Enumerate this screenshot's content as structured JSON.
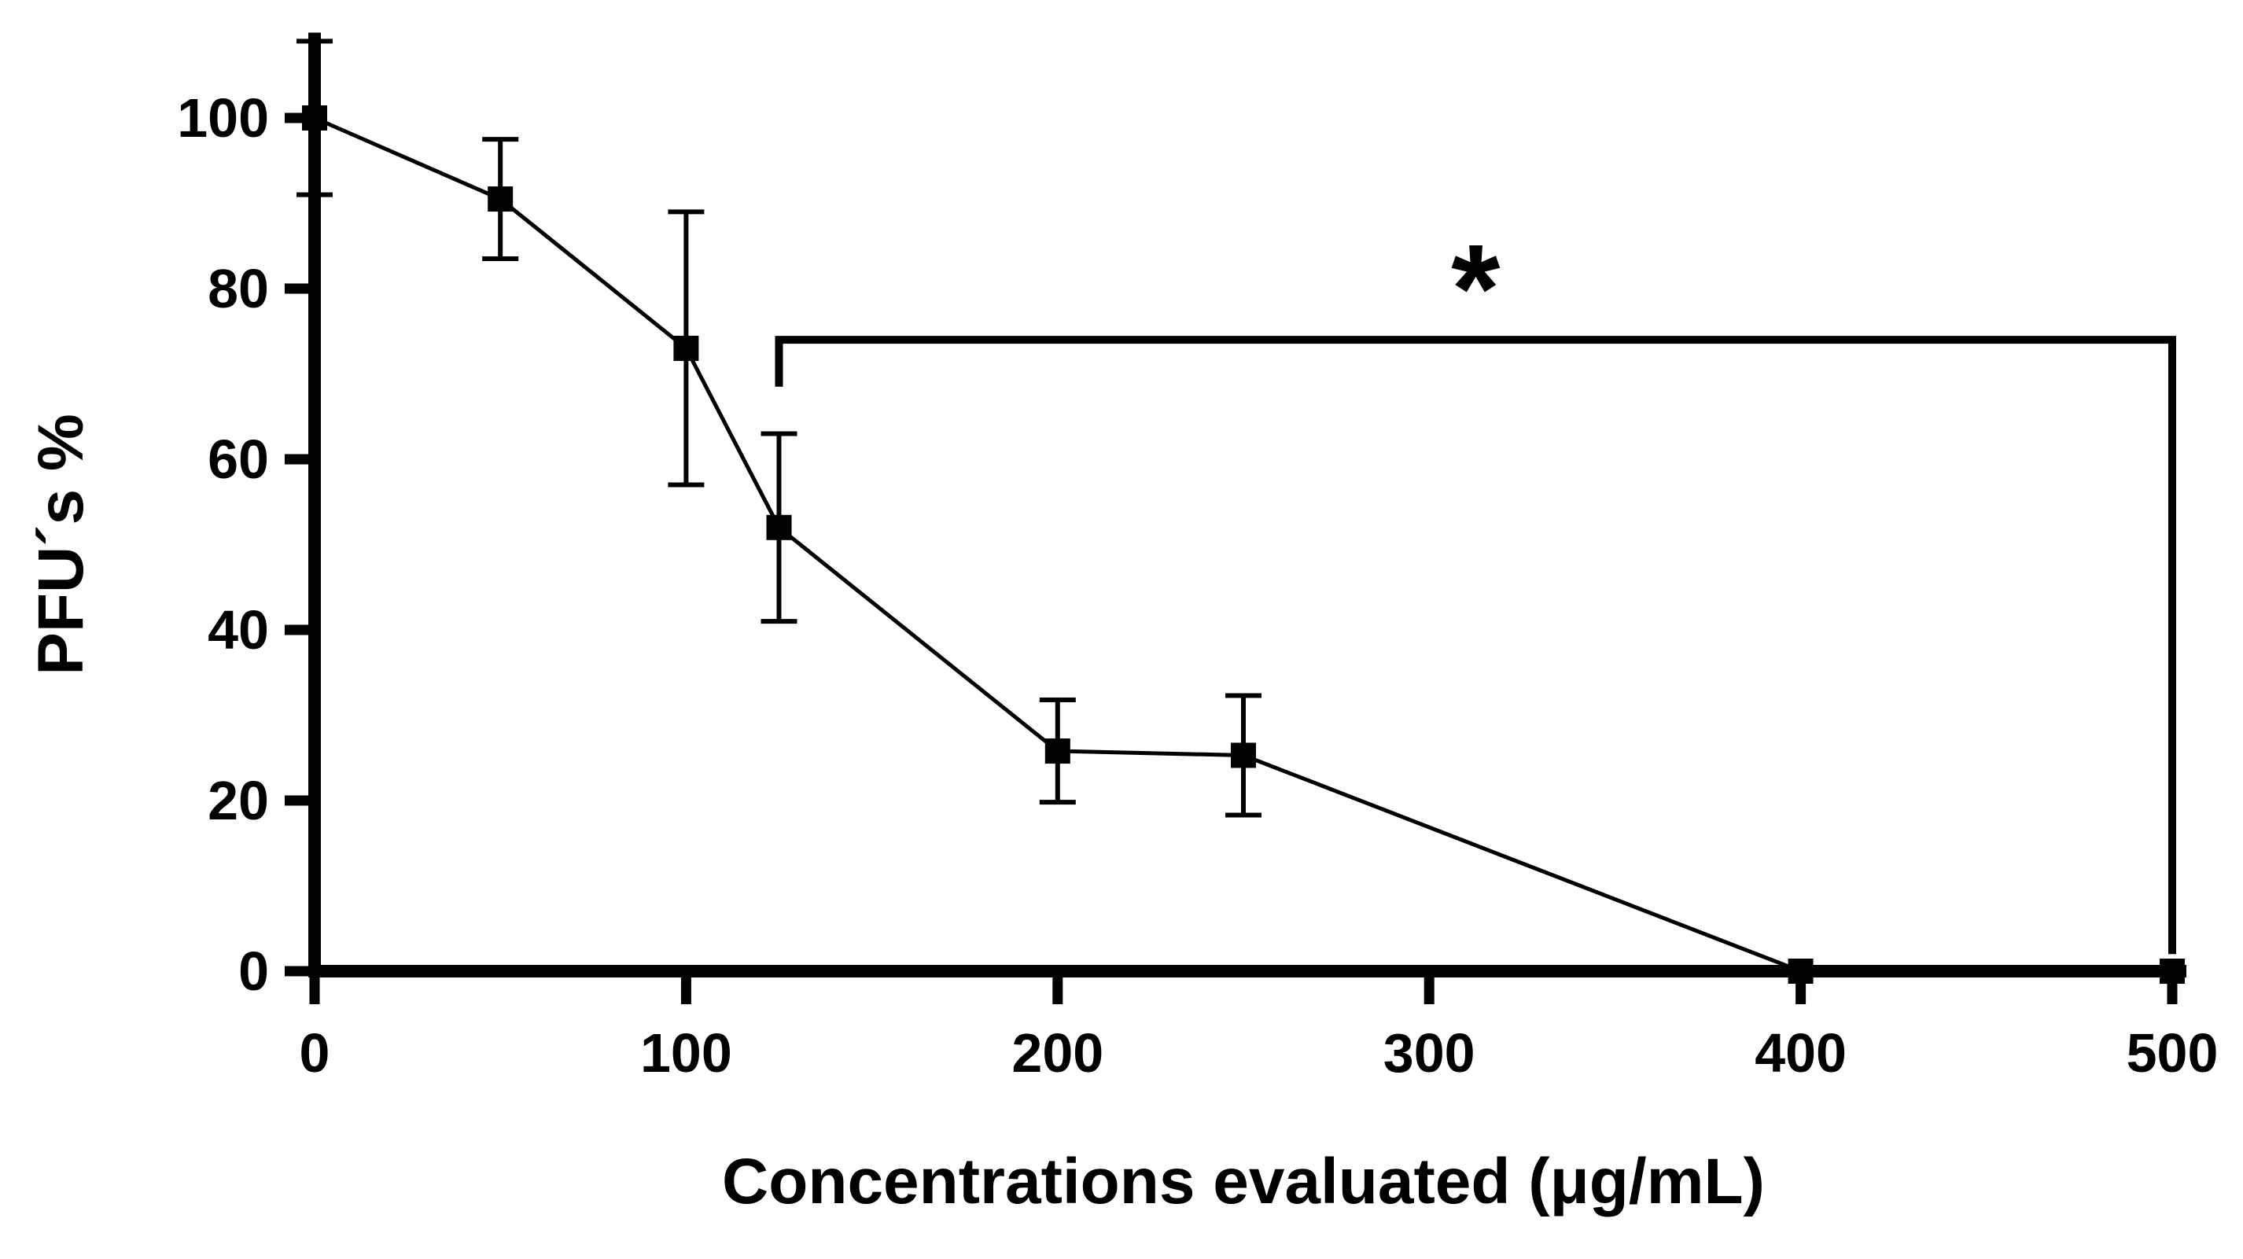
{
  "figure": {
    "background": "#ffffff",
    "foreground": "#000000"
  },
  "chart_data": {
    "type": "line",
    "title": "",
    "xlabel": "Concentrations evaluated (μg/mL)",
    "ylabel": "PFU´s %",
    "x": [
      0,
      50,
      100,
      125,
      200,
      250,
      400,
      500
    ],
    "y": [
      100,
      90.5,
      73,
      52,
      25.8,
      25.3,
      0,
      0
    ],
    "yerr": [
      9,
      7,
      16,
      11,
      6,
      7,
      0,
      0
    ],
    "xticks": [
      0,
      100,
      200,
      300,
      400,
      500
    ],
    "yticks": [
      0,
      20,
      40,
      60,
      80,
      100
    ],
    "xlim": [
      0,
      500
    ],
    "ylim": [
      0,
      110
    ],
    "grid": false,
    "legend": null,
    "marker": "filled-square",
    "line_color": "#000000",
    "annotation": {
      "type": "significance_bracket",
      "label": "*",
      "x_from": 125,
      "x_to": 500,
      "bracket_y": 74,
      "left_tick_bottom_y": 68.5,
      "right_drop_to_y": 2
    }
  }
}
